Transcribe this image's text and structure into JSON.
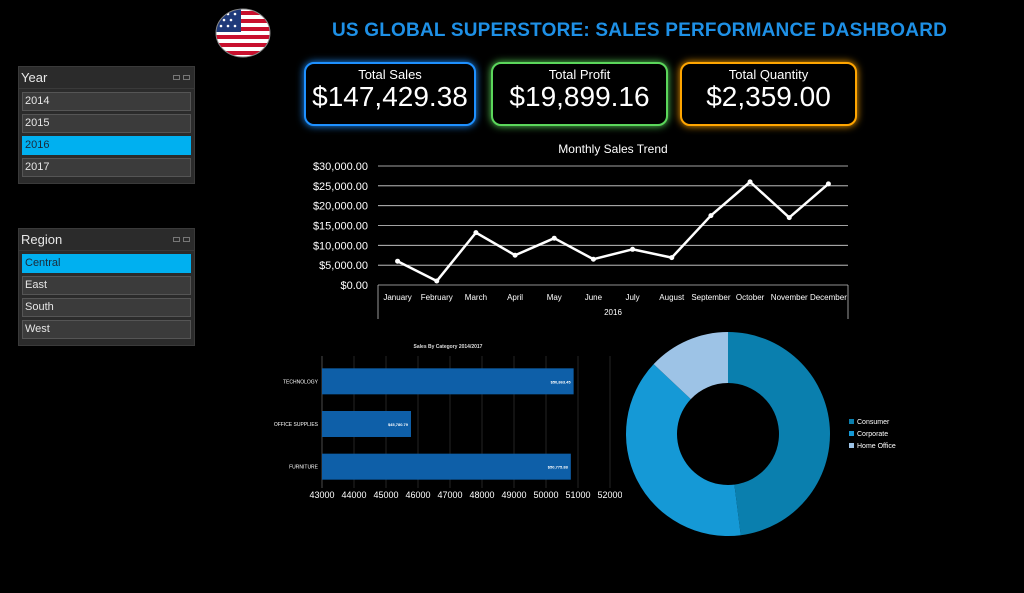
{
  "dashboard": {
    "title": "US GLOBAL SUPERSTORE: SALES PERFORMANCE DASHBOARD"
  },
  "slicers": {
    "year": {
      "title": "Year",
      "items": [
        "2014",
        "2015",
        "2016",
        "2017"
      ],
      "selected": "2016"
    },
    "region": {
      "title": "Region",
      "items": [
        "Central",
        "East",
        "South",
        "West"
      ],
      "selected": "Central"
    }
  },
  "kpis": {
    "sales": {
      "label": "Total Sales",
      "value": "$147,429.38",
      "color": "#1e90ff"
    },
    "profit": {
      "label": "Total Profit",
      "value": "$19,899.16",
      "color": "#5bd65b"
    },
    "quantity": {
      "label": "Total Quantity",
      "value": "$2,359.00",
      "color": "#ffa500"
    }
  },
  "chart_data": [
    {
      "type": "line",
      "title": "Monthly Sales Trend",
      "xlabel": "2016",
      "categories": [
        "January",
        "February",
        "March",
        "April",
        "May",
        "June",
        "July",
        "August",
        "September",
        "October",
        "November",
        "December"
      ],
      "values": [
        6000,
        1000,
        13200,
        7500,
        11800,
        6500,
        9000,
        6900,
        17500,
        26000,
        17000,
        25500
      ],
      "ylim": [
        0,
        30000
      ],
      "yticks": [
        "$0.00",
        "$5,000.00",
        "$10,000.00",
        "$15,000.00",
        "$20,000.00",
        "$25,000.00",
        "$30,000.00"
      ],
      "line_color": "#ffffff",
      "grid": true
    },
    {
      "type": "bar",
      "orientation": "horizontal",
      "title": "Sales By Category 2014/2017",
      "categories": [
        "TECHNOLOGY",
        "OFFICE SUPPLIES",
        "FURNITURE"
      ],
      "values": [
        50863.45,
        45780.79,
        50775.88
      ],
      "data_labels": [
        "$50,863.45",
        "$45,780.79",
        "$50,775.88"
      ],
      "xlim": [
        43000,
        52000
      ],
      "xticks": [
        "43000",
        "44000",
        "45000",
        "46000",
        "47000",
        "48000",
        "49000",
        "50000",
        "51000",
        "52000"
      ],
      "bar_color": "#0e5fa8",
      "grid": true
    },
    {
      "type": "pie",
      "style": "donut",
      "series": [
        {
          "name": "Consumer",
          "value": 0.48,
          "color": "#0a7fae"
        },
        {
          "name": "Corporate",
          "value": 0.39,
          "color": "#1599d6"
        },
        {
          "name": "Home Office",
          "value": 0.13,
          "color": "#9dc3e6"
        }
      ],
      "legend_position": "right"
    }
  ]
}
